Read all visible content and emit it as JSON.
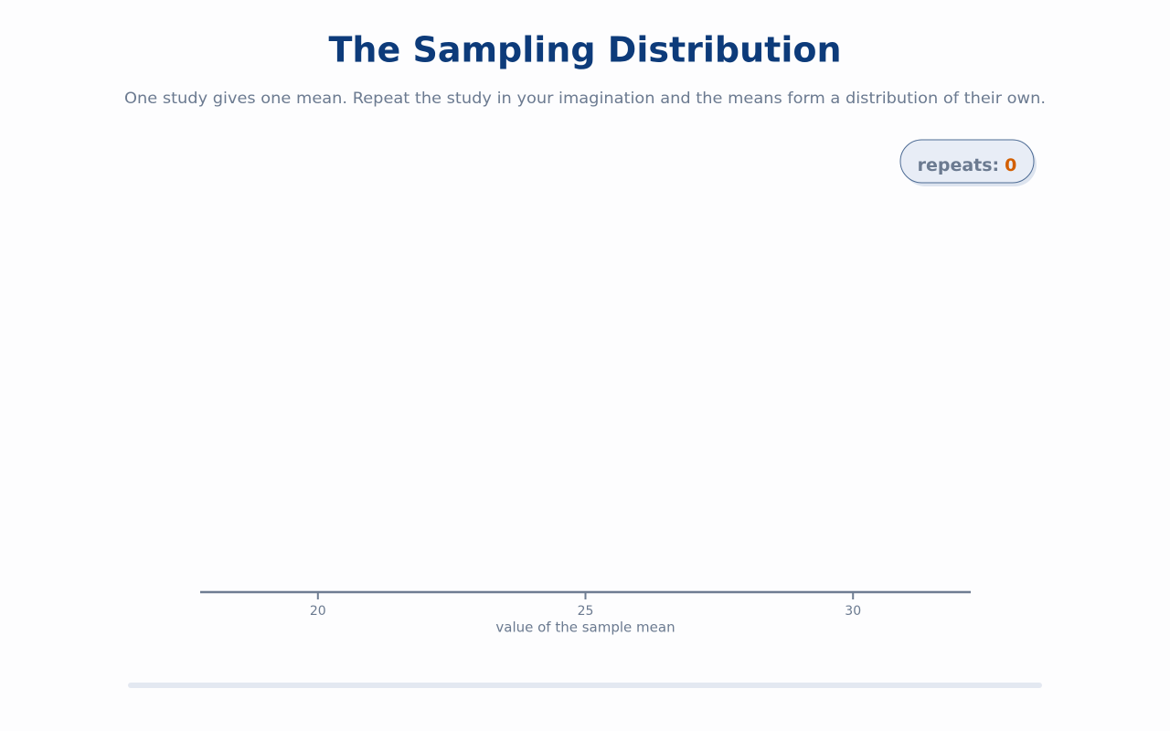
{
  "chart_data": {
    "type": "dotplot",
    "title": "The Sampling Distribution",
    "subtitle": "One study gives one mean. Repeat the study in your imagination and the means form a distribution of their own.",
    "xlabel": "value of the sample mean",
    "xlim": [
      17.8,
      32.2
    ],
    "xticks": [
      20,
      25,
      30
    ],
    "counter_label": "repeats:",
    "repeats": 0
  }
}
